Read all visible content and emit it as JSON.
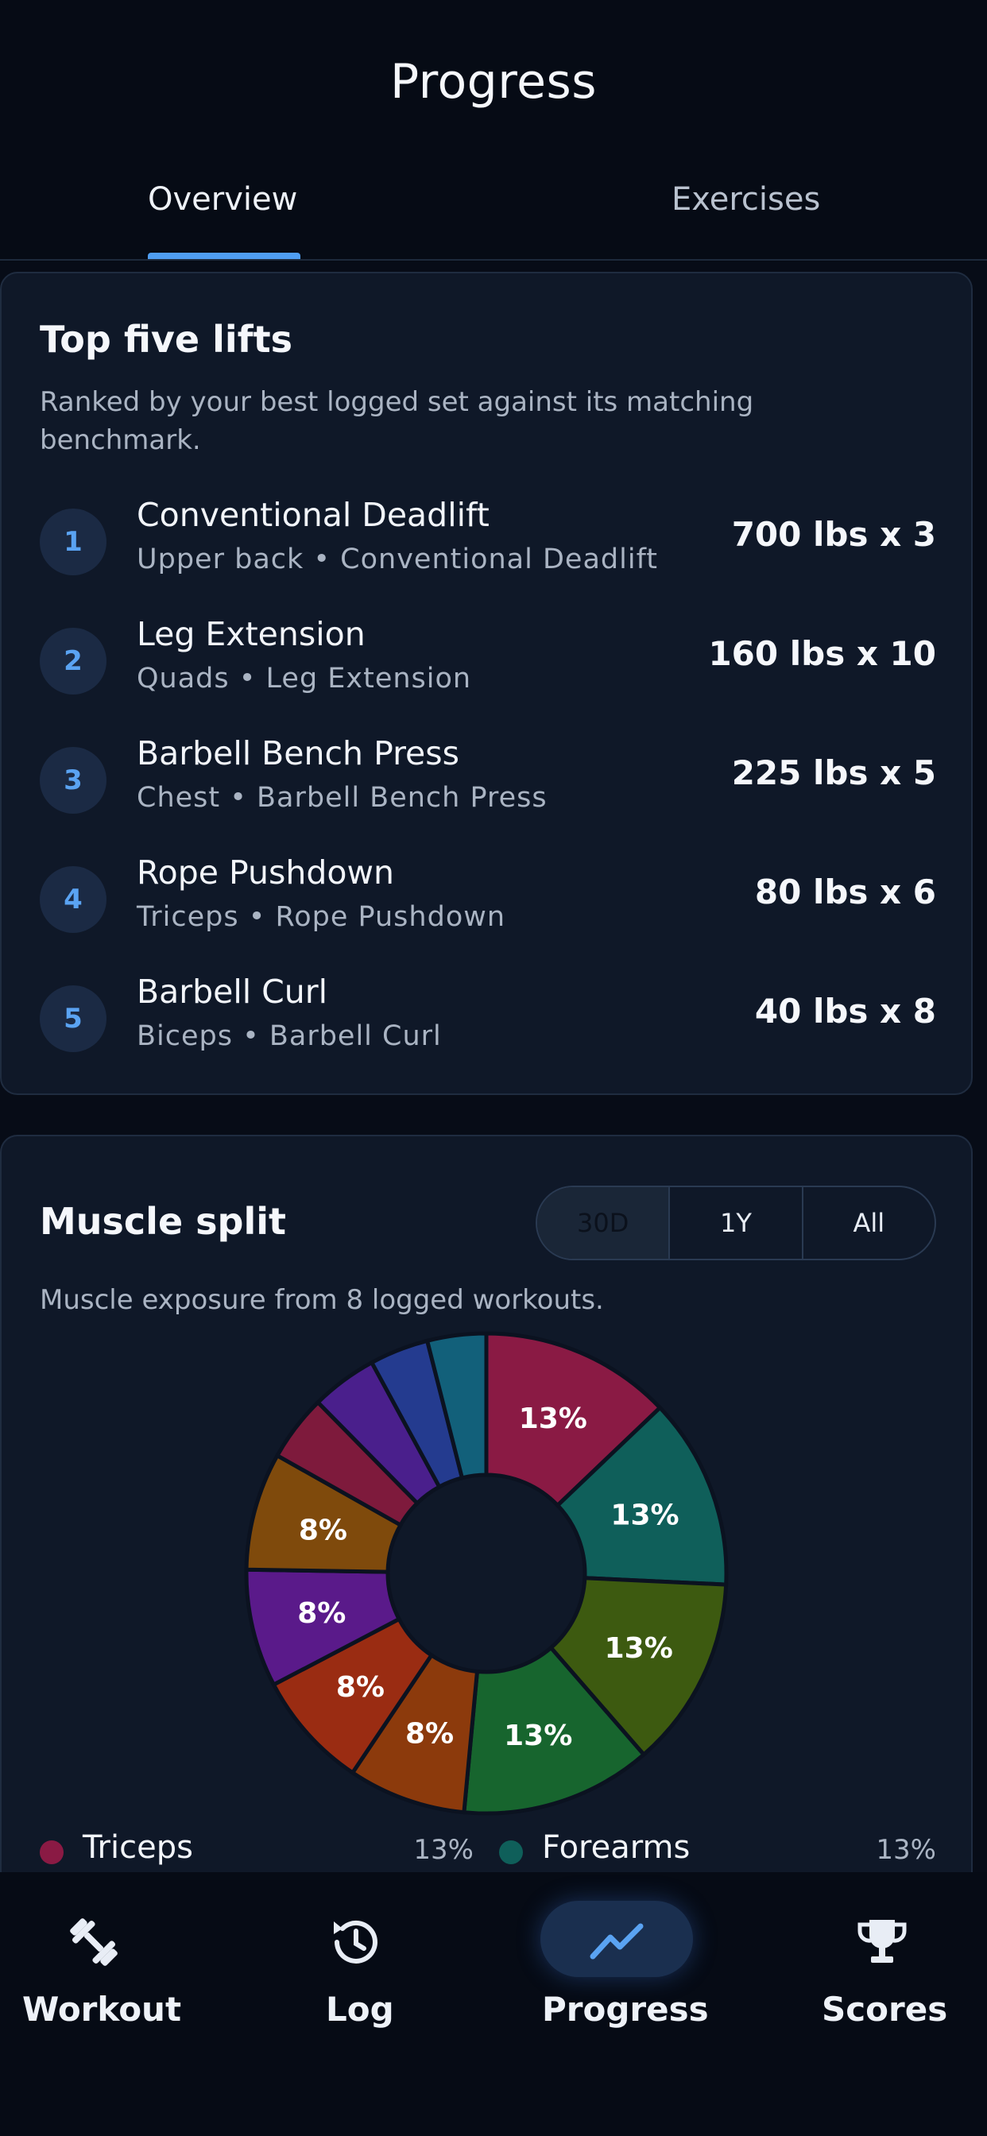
{
  "header": {
    "title": "Progress"
  },
  "tabs": [
    {
      "label": "Overview",
      "active": true
    },
    {
      "label": "Exercises",
      "active": false
    }
  ],
  "top_lifts": {
    "title": "Top five lifts",
    "subtitle": "Ranked by your best logged set against its matching benchmark.",
    "items": [
      {
        "rank": "1",
        "name": "Conventional Deadlift",
        "detail": "Upper back • Conventional Deadlift",
        "value": "700 lbs x 3"
      },
      {
        "rank": "2",
        "name": "Leg Extension",
        "detail": "Quads • Leg Extension",
        "value": "160 lbs x 10"
      },
      {
        "rank": "3",
        "name": "Barbell Bench Press",
        "detail": "Chest • Barbell Bench Press",
        "value": "225 lbs x 5"
      },
      {
        "rank": "4",
        "name": "Rope Pushdown",
        "detail": "Triceps • Rope Pushdown",
        "value": "80 lbs x 6"
      },
      {
        "rank": "5",
        "name": "Barbell Curl",
        "detail": "Biceps • Barbell Curl",
        "value": "40 lbs x 8"
      }
    ]
  },
  "muscle_split": {
    "title": "Muscle split",
    "ranges": [
      {
        "label": "30D",
        "active": true
      },
      {
        "label": "1Y",
        "active": false
      },
      {
        "label": "All",
        "active": false
      }
    ],
    "subtitle": "Muscle exposure from 8 logged workouts.",
    "legend": [
      {
        "label": "Triceps",
        "pct": "13%",
        "color": "#8a1a44"
      },
      {
        "label": "Forearms",
        "pct": "13%",
        "color": "#0f5f5a"
      }
    ]
  },
  "chart_data": {
    "type": "pie",
    "donut": true,
    "slices": [
      {
        "label": "13%",
        "value": 13,
        "color": "#8a1a44"
      },
      {
        "label": "13%",
        "value": 13,
        "color": "#0f5f5a"
      },
      {
        "label": "13%",
        "value": 13,
        "color": "#3d5a10"
      },
      {
        "label": "13%",
        "value": 13,
        "color": "#17652e"
      },
      {
        "label": "8%",
        "value": 8,
        "color": "#8c3a0c"
      },
      {
        "label": "8%",
        "value": 8,
        "color": "#9a2c12"
      },
      {
        "label": "8%",
        "value": 8,
        "color": "#5a1a8a"
      },
      {
        "label": "8%",
        "value": 8,
        "color": "#7f4a0c"
      },
      {
        "label": "",
        "value": 4.5,
        "color": "#7e1a3c"
      },
      {
        "label": "",
        "value": 4.5,
        "color": "#4a1f8c"
      },
      {
        "label": "",
        "value": 4,
        "color": "#243b8f"
      },
      {
        "label": "",
        "value": 4,
        "color": "#12607a"
      }
    ]
  },
  "tabbar": {
    "items": [
      {
        "label": "Workout",
        "icon": "dumbbell-icon",
        "active": false
      },
      {
        "label": "Log",
        "icon": "history-icon",
        "active": false
      },
      {
        "label": "Progress",
        "icon": "trend-icon",
        "active": true
      },
      {
        "label": "Scores",
        "icon": "trophy-icon",
        "active": false
      }
    ]
  }
}
